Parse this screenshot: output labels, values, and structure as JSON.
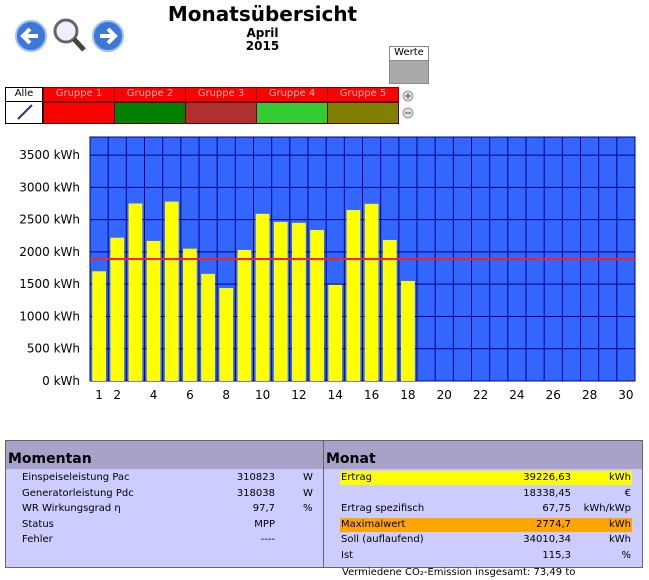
{
  "header": {
    "title": "Monatsübersicht",
    "month": "April",
    "year": "2015",
    "button": "Werte"
  },
  "groups": {
    "all": "Alle",
    "items": [
      "Gruppe 1",
      "Gruppe 2",
      "Gruppe 3",
      "Gruppe 4",
      "Gruppe 5"
    ]
  },
  "chart_data": {
    "type": "bar",
    "categories": [
      "1",
      "2",
      null,
      "4",
      null,
      "6",
      null,
      "8",
      null,
      "10",
      null,
      "12",
      null,
      "14",
      null,
      "16",
      null,
      "18",
      null,
      "20",
      null,
      "22",
      null,
      "24",
      null,
      "26",
      null,
      "28",
      null,
      "30"
    ],
    "values": [
      1700,
      2220,
      2750,
      2170,
      2780,
      2050,
      1660,
      1440,
      2030,
      2590,
      2465,
      2450,
      2340,
      1490,
      2650,
      2745,
      2185,
      1550,
      null,
      null,
      null,
      null,
      null,
      null,
      null,
      null,
      null,
      null,
      null,
      null
    ],
    "color": "#ffff00",
    "background": "#3366ff",
    "grid": true,
    "reference_line": 1890,
    "reference_color": "#ff2020",
    "ylim": [
      0,
      3780
    ],
    "yticks": [
      {
        "value": 0,
        "label": "0 kWh"
      },
      {
        "value": 500,
        "label": "500 kWh"
      },
      {
        "value": 1000,
        "label": "1000 kWh"
      },
      {
        "value": 1500,
        "label": "1500 kWh"
      },
      {
        "value": 2000,
        "label": "2000 kWh"
      },
      {
        "value": 2500,
        "label": "2500 kWh"
      },
      {
        "value": 3000,
        "label": "3000 kWh"
      },
      {
        "value": 3500,
        "label": "3500 kWh"
      }
    ]
  },
  "momentan": {
    "title": "Momentan",
    "rows": [
      [
        "Einspeiseleistung Pac",
        "310823",
        "W"
      ],
      [
        "Generatorleistung Pdc",
        "318038",
        "W"
      ],
      [
        "WR Wirkungsgrad η",
        "97,7",
        "%"
      ],
      [
        "Status",
        "MPP",
        null
      ],
      [
        "Fehler",
        "----",
        null
      ]
    ]
  },
  "monat": {
    "title": "Monat",
    "rows": [
      [
        "Ertrag",
        "39226,63",
        "kWh"
      ],
      [
        null,
        "18338,45",
        "€"
      ],
      [
        "Ertrag spezifisch",
        "67,75",
        "kWh/kWp"
      ],
      [
        "Maximalwert",
        "2774,7",
        "kWh"
      ],
      [
        "Soll (auflaufend)",
        "34010,34",
        "kWh"
      ],
      [
        "Ist",
        "115,3",
        "%"
      ]
    ]
  },
  "footer": "Vermiedene CO₂-Emission insgesamt: 73,49 to"
}
